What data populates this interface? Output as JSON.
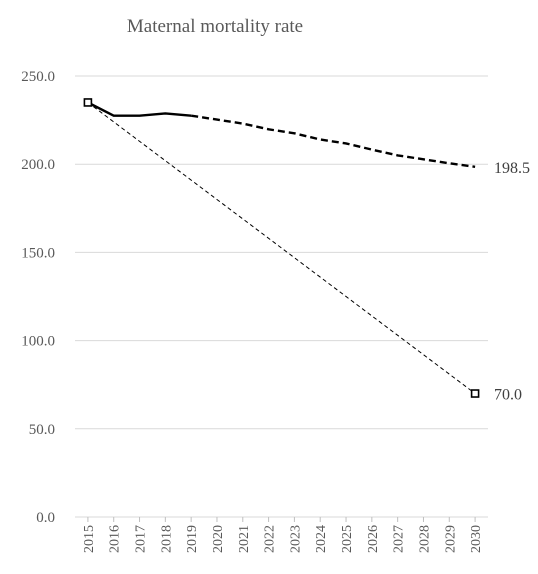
{
  "chart_data": {
    "type": "line",
    "title": "Maternal mortality rate",
    "xlabel": "",
    "ylabel": "",
    "x": [
      "2015",
      "2016",
      "2017",
      "2018",
      "2019",
      "2020",
      "2021",
      "2022",
      "2023",
      "2024",
      "2025",
      "2026",
      "2027",
      "2028",
      "2029",
      "2030"
    ],
    "ylim": [
      0,
      250
    ],
    "yticks": [
      "0.0",
      "50.0",
      "100.0",
      "150.0",
      "200.0",
      "250.0"
    ],
    "grid": true,
    "legend": "none",
    "series": [
      {
        "style": "solid",
        "x": [
          "2015",
          "2016",
          "2017",
          "2018",
          "2019"
        ],
        "values": [
          235.0,
          227.5,
          227.5,
          228.8,
          227.5
        ],
        "color": "#000000"
      },
      {
        "style": "dashed-bold",
        "x": [
          "2019",
          "2020",
          "2021",
          "2022",
          "2023",
          "2024",
          "2025",
          "2026",
          "2027",
          "2028",
          "2029",
          "2030"
        ],
        "values": [
          227.5,
          225.3,
          223.0,
          219.8,
          217.5,
          214.0,
          211.8,
          208.3,
          205.0,
          202.8,
          200.5,
          198.5
        ],
        "color": "#000000",
        "end_label": "198.5"
      },
      {
        "style": "dashed-thin",
        "x": [
          "2015",
          "2030"
        ],
        "values": [
          235.0,
          70.0
        ],
        "color": "#000000",
        "marker": "square",
        "end_label": "70.0"
      }
    ]
  }
}
